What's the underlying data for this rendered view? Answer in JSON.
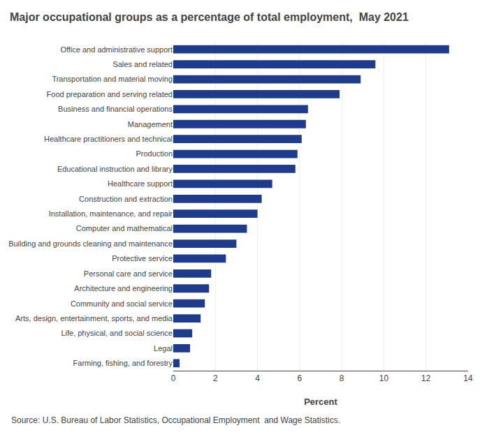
{
  "chart_data": {
    "type": "bar",
    "orientation": "horizontal",
    "title": "Major occupational groups as a percentage of total employment,  May 2021",
    "xlabel": "Percent",
    "categories": [
      "Farming, fishing, and forestry",
      "Legal",
      "Life, physical, and social science",
      "Arts, design, entertainment, sports, and media",
      "Community and social service",
      "Architecture and engineering",
      "Personal care and service",
      "Protective service",
      "Building and grounds cleaning and maintenance",
      "Computer and mathematical",
      "Installation, maintenance, and repair",
      "Construction and extraction",
      "Healthcare support",
      "Educational instruction and library",
      "Production",
      "Healthcare practitioners and technical",
      "Management",
      "Business and financial operations",
      "Food preparation and serving related",
      "Transportation and material moving",
      "Sales and related",
      "Office and administrative support"
    ],
    "values": [
      0.3,
      0.8,
      0.9,
      1.3,
      1.5,
      1.7,
      1.8,
      2.5,
      3.0,
      3.5,
      4.0,
      4.2,
      4.7,
      5.8,
      5.9,
      6.1,
      6.3,
      6.4,
      7.9,
      8.9,
      9.6,
      13.1
    ],
    "color": "#1F3C8C",
    "xlim": [
      0,
      14
    ],
    "xticks": [
      0,
      2,
      4,
      6,
      8,
      10,
      12,
      14
    ],
    "grid": true,
    "annotations": [
      "Source: U.S. Bureau of Labor Statistics, Occupational Employment  and Wage Statistics."
    ]
  }
}
